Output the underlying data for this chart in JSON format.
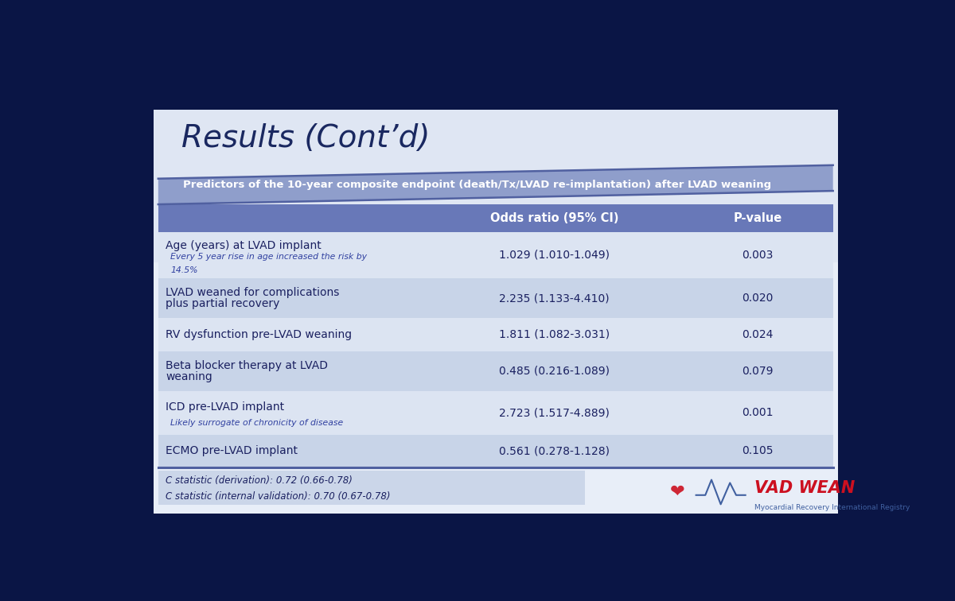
{
  "title": "Results (Cont’d)",
  "subtitle": "Predictors of the 10-year composite endpoint (death/Tx/LVAD re-implantation) after LVAD weaning",
  "rows": [
    {
      "predictor": "Age (years) at LVAD implant",
      "sub": "Every 5 year rise in age increased the risk by\n14.5%",
      "or": "1.029 (1.010-1.049)",
      "pval": "0.003",
      "shaded": false
    },
    {
      "predictor": "LVAD weaned for complications\nplus partial recovery",
      "sub": "",
      "or": "2.235 (1.133-4.410)",
      "pval": "0.020",
      "shaded": true
    },
    {
      "predictor": "RV dysfunction pre-LVAD weaning",
      "sub": "",
      "or": "1.811 (1.082-3.031)",
      "pval": "0.024",
      "shaded": false
    },
    {
      "predictor": "Beta blocker therapy at LVAD\nweaning",
      "sub": "",
      "or": "0.485 (0.216-1.089)",
      "pval": "0.079",
      "shaded": true
    },
    {
      "predictor": "ICD pre-LVAD implant",
      "sub": "Likely surrogate of chronicity of disease",
      "or": "2.723 (1.517-4.889)",
      "pval": "0.001",
      "shaded": false
    },
    {
      "predictor": "ECMO pre-LVAD implant",
      "sub": "",
      "or": "0.561 (0.278-1.128)",
      "pval": "0.105",
      "shaded": true
    }
  ],
  "footer": [
    "C statistic (derivation): 0.72 (0.66-0.78)",
    "C statistic (internal validation): 0.70 (0.67-0.78)"
  ],
  "monitor_bg": "#0a1545",
  "slide_bg": "#d8e0f0",
  "slide_bg2": "#e8eef8",
  "table_bg_light": "#dce4f2",
  "table_bg_dark": "#c8d4e8",
  "header_bg": "#6878b8",
  "subtitle_bg": "#8898c8",
  "title_color": "#1a2860",
  "row_text_color": "#1a2060",
  "sub_text_color": "#3040a0",
  "footer_bg": "#c8d4e8",
  "footer_text": "#1a2060",
  "line_color": "#5060a0",
  "vadwean_red": "#cc1020",
  "vadwean_blue": "#4060a0"
}
